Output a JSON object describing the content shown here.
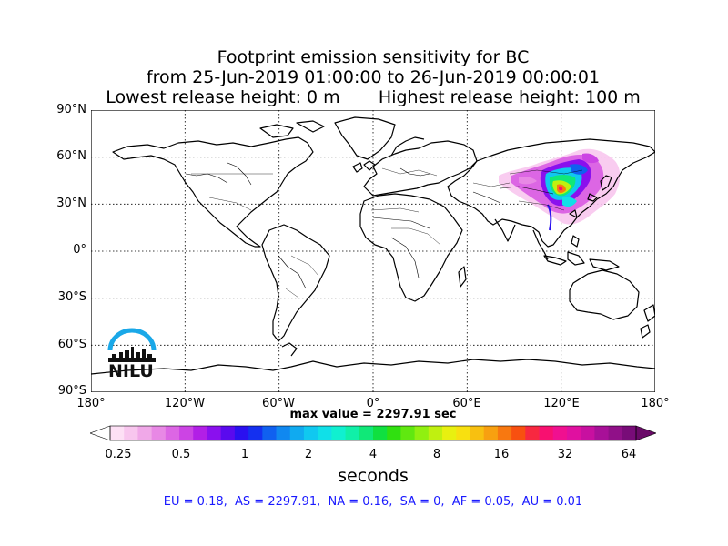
{
  "title": {
    "line1": "Footprint emission sensitivity for BC",
    "line2": "from 25-Jun-2019 01:00:00 to 26-Jun-2019 00:00:01",
    "line3": "Lowest release height: 0 m       Highest release height: 100 m"
  },
  "map": {
    "projection": "equirectangular",
    "lon_range": [
      -180,
      180
    ],
    "lat_range": [
      -90,
      90
    ],
    "grid": true,
    "lat_labels": [
      "90°N",
      "60°N",
      "30°N",
      "0°",
      "30°S",
      "60°S",
      "90°S"
    ],
    "lon_labels": [
      "180°",
      "120°W",
      "60°W",
      "0°",
      "60°E",
      "120°E",
      "180°"
    ],
    "land_outline_color": "#000000",
    "footprint_region": "East Asia (China, Mongolia, Russian Far East)",
    "footprint_center": {
      "lon": 125,
      "lat": 44
    }
  },
  "max_value_text": "max value = 2297.91 sec",
  "colorbar": {
    "ticks": [
      "0.25",
      "0.5",
      "1",
      "2",
      "4",
      "8",
      "16",
      "32",
      "64"
    ],
    "label": "seconds",
    "scale": "log",
    "colors": [
      "#fde0f5",
      "#f8c6ee",
      "#f0a8e8",
      "#e888e5",
      "#dc66e4",
      "#cc44e4",
      "#b21fe6",
      "#8a10ee",
      "#5a0aee",
      "#2a10f0",
      "#1430f0",
      "#1060f0",
      "#1088f0",
      "#10aaf0",
      "#10c8f0",
      "#10e0e8",
      "#10f0d0",
      "#10f0a8",
      "#10e878",
      "#10e040",
      "#30e010",
      "#60e810",
      "#90f010",
      "#c0f010",
      "#e8f010",
      "#f8e010",
      "#f8c010",
      "#f8a010",
      "#f87810",
      "#f85010",
      "#f82840",
      "#f81070",
      "#f01090",
      "#e010a0",
      "#c810a0",
      "#a81098",
      "#901088",
      "#780c78"
    ],
    "extend_low_color": "#ffffff",
    "extend_high_color": "#6a0a68"
  },
  "regions_text": "EU = 0.18,  AS = 2297.91,  NA = 0.16,  SA = 0,  AF = 0.05,  AU = 0.01",
  "logo": {
    "text": "NILU",
    "arc_color": "#1aa8e8"
  }
}
